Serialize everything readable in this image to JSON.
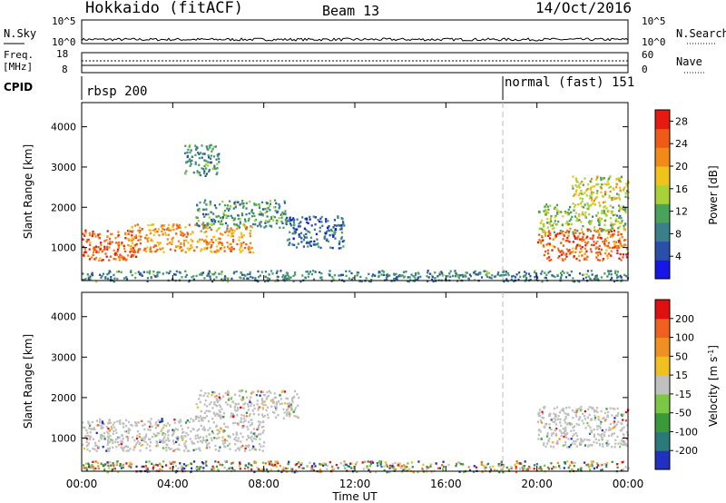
{
  "header": {
    "station": "Hokkaido (fitACF)",
    "beam": "Beam 13",
    "date": "14/Oct/2016"
  },
  "top_panels": {
    "nsky_label": "N.Sky",
    "nsky_ticks": [
      "10^5",
      "10^0"
    ],
    "nsearch_label": "N.Search",
    "nsearch_ticks": [
      "10^5",
      "10^0"
    ],
    "freq_label": "Freq.",
    "freq_unit": "[MHz]",
    "freq_ticks": [
      "18",
      "8"
    ],
    "nave_label": "Nave",
    "nave_ticks": [
      "60",
      "0"
    ],
    "cpid_label": "CPID",
    "cpid_segments": [
      {
        "label": "rbsp 200",
        "start_hour": 0
      },
      {
        "label": "normal (fast) 151",
        "start_hour": 18.5
      }
    ]
  },
  "chart_data": [
    {
      "type": "heatmap",
      "title": "",
      "xlabel": "Time UT",
      "ylabel": "Slant Range [km]",
      "x_ticks": [
        "00:00",
        "04:00",
        "08:00",
        "12:00",
        "16:00",
        "20:00",
        "00:00"
      ],
      "y_ticks": [
        "1000",
        "2000",
        "3000",
        "4000"
      ],
      "xlim_hours": [
        0,
        24
      ],
      "ylim_km": [
        180,
        4600
      ],
      "colorbar": {
        "label": "Power [dB]",
        "ticks": [
          "4",
          "8",
          "12",
          "16",
          "20",
          "24",
          "28"
        ],
        "range": [
          0,
          30
        ],
        "colors": [
          "#1616e8",
          "#2a4fa8",
          "#3b7f8a",
          "#4aa35a",
          "#a9d23a",
          "#f2c21c",
          "#f28a1a",
          "#ef5a16",
          "#e61a10"
        ]
      },
      "regions": [
        {
          "t0": 0.0,
          "t1": 2.5,
          "r0": 700,
          "r1": 1450,
          "value": 26
        },
        {
          "t0": 2.0,
          "t1": 7.5,
          "r0": 900,
          "r1": 1600,
          "value": 22
        },
        {
          "t0": 5.0,
          "t1": 9.0,
          "r0": 1500,
          "r1": 2200,
          "value": 10
        },
        {
          "t0": 4.5,
          "t1": 6.0,
          "r0": 2800,
          "r1": 3600,
          "value": 9
        },
        {
          "t0": 9.0,
          "t1": 11.5,
          "r0": 1000,
          "r1": 1800,
          "value": 6
        },
        {
          "t0": 0.0,
          "t1": 24.0,
          "r0": 180,
          "r1": 450,
          "value": 8
        },
        {
          "t0": 20.0,
          "t1": 24.0,
          "r0": 700,
          "r1": 1500,
          "value": 25
        },
        {
          "t0": 20.0,
          "t1": 24.0,
          "r0": 1400,
          "r1": 2100,
          "value": 14
        },
        {
          "t0": 21.5,
          "t1": 24.0,
          "r0": 2100,
          "r1": 2800,
          "value": 17
        }
      ]
    },
    {
      "type": "heatmap",
      "title": "",
      "xlabel": "Time UT",
      "ylabel": "Slant Range [km]",
      "x_ticks": [
        "00:00",
        "04:00",
        "08:00",
        "12:00",
        "16:00",
        "20:00",
        "00:00"
      ],
      "y_ticks": [
        "1000",
        "2000",
        "3000",
        "4000"
      ],
      "xlim_hours": [
        0,
        24
      ],
      "ylim_km": [
        180,
        4600
      ],
      "colorbar": {
        "label": "Velocity [m s-1]",
        "label_main": "Velocity [m s",
        "label_exp": "-1",
        "label_close": "]",
        "ticks": [
          "200",
          "100",
          "50",
          "15",
          "-15",
          "-50",
          "-100",
          "-200"
        ],
        "colors": [
          "#2030c0",
          "#2a7a7a",
          "#3a9a3a",
          "#7ac843",
          "#c0c0c0",
          "#f0c020",
          "#f09020",
          "#f06020",
          "#e01010"
        ]
      },
      "regions": [
        {
          "t0": 0.0,
          "t1": 8.0,
          "r0": 700,
          "r1": 1500,
          "value": 0
        },
        {
          "t0": 5.0,
          "t1": 9.5,
          "r0": 1500,
          "r1": 2200,
          "value": 0
        },
        {
          "t0": 20.0,
          "t1": 24.0,
          "r0": 800,
          "r1": 1800,
          "value": 0
        },
        {
          "t0": 0.0,
          "t1": 24.0,
          "r0": 180,
          "r1": 450,
          "value": 30
        }
      ]
    }
  ]
}
